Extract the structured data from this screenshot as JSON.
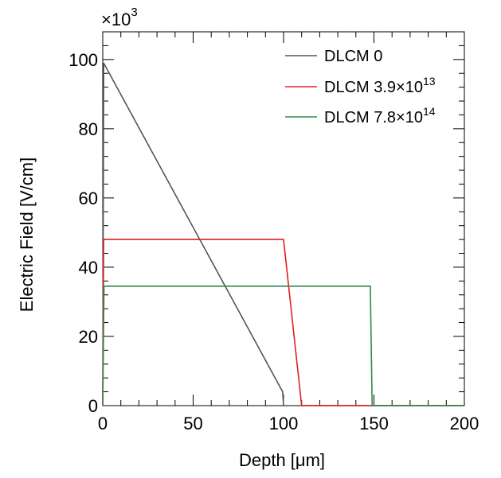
{
  "chart_data": {
    "type": "line",
    "xlabel": "Depth [μm]",
    "ylabel": "Electric Field [V/cm]",
    "y_exponent_base": "×10",
    "y_exponent_power": "3",
    "xlim": [
      0,
      200
    ],
    "ylim": [
      0,
      108
    ],
    "xticks": [
      0,
      50,
      100,
      150,
      200
    ],
    "yticks": [
      0,
      20,
      40,
      60,
      80,
      100
    ],
    "xtick_labels": [
      "0",
      "50",
      "100",
      "150",
      "200"
    ],
    "ytick_labels": [
      "0",
      "20",
      "40",
      "60",
      "80",
      "100"
    ],
    "grid": false,
    "legend_position": "top-right",
    "series": [
      {
        "name": "DLCM 0",
        "label_main": "DLCM 0",
        "label_sup": "",
        "color": "#555555",
        "x": [
          0,
          0.5,
          99.5,
          100,
          200
        ],
        "y": [
          0,
          99,
          4,
          0,
          0
        ]
      },
      {
        "name": "DLCM 3.9×10^13",
        "label_main": "DLCM 3.9×10",
        "label_sup": "13",
        "color": "#e02020",
        "x": [
          0,
          0.5,
          100,
          110,
          111,
          200
        ],
        "y": [
          0,
          48,
          48,
          0,
          0,
          0
        ]
      },
      {
        "name": "DLCM 7.8×10^14",
        "label_main": "DLCM 7.8×10",
        "label_sup": "14",
        "color": "#2e8b4a",
        "x": [
          0,
          0.7,
          148,
          149,
          150,
          200
        ],
        "y": [
          0,
          34.5,
          34.5,
          0,
          0,
          0
        ]
      }
    ]
  }
}
